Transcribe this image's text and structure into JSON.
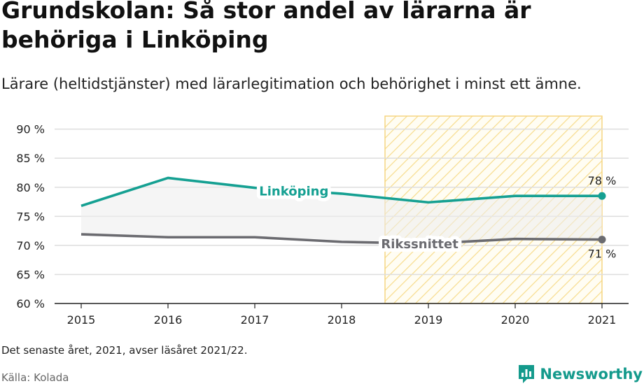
{
  "header": {
    "title": "Grundskolan: Så stor andel av lärarna är behöriga i Linköping",
    "subtitle": "Lärare (heltidstjänster) med lärarlegitimation och behörighet i minst ett ämne."
  },
  "chart_data": {
    "type": "line",
    "x": [
      2015,
      2016,
      2017,
      2018,
      2019,
      2020,
      2021
    ],
    "x_tick_labels": [
      "2015",
      "2016",
      "2017",
      "2018",
      "2019",
      "2020",
      "2021"
    ],
    "ylim": [
      60,
      92
    ],
    "y_ticks": [
      60,
      65,
      70,
      75,
      80,
      85,
      90
    ],
    "y_tick_labels": [
      "60 %",
      "65 %",
      "70 %",
      "75 %",
      "80 %",
      "85 %",
      "90 %"
    ],
    "grid": true,
    "highlight_range": [
      2018.5,
      2021
    ],
    "series": [
      {
        "name": "Linköping",
        "values": [
          76.8,
          81.6,
          79.9,
          78.9,
          77.4,
          78.5,
          78.5
        ],
        "color": "#15a092",
        "end_label": "78 %"
      },
      {
        "name": "Rikssnittet",
        "values": [
          71.9,
          71.4,
          71.4,
          70.6,
          70.3,
          71.1,
          71.0
        ],
        "color": "#6b6b70",
        "end_label": "71 %"
      }
    ]
  },
  "footer": {
    "note": "Det senaste året, 2021, avser läsåret 2021/22.",
    "source": "Källa: Kolada",
    "brand": "Newsworthy",
    "brand_icon": "newsworthy-logo-icon"
  }
}
